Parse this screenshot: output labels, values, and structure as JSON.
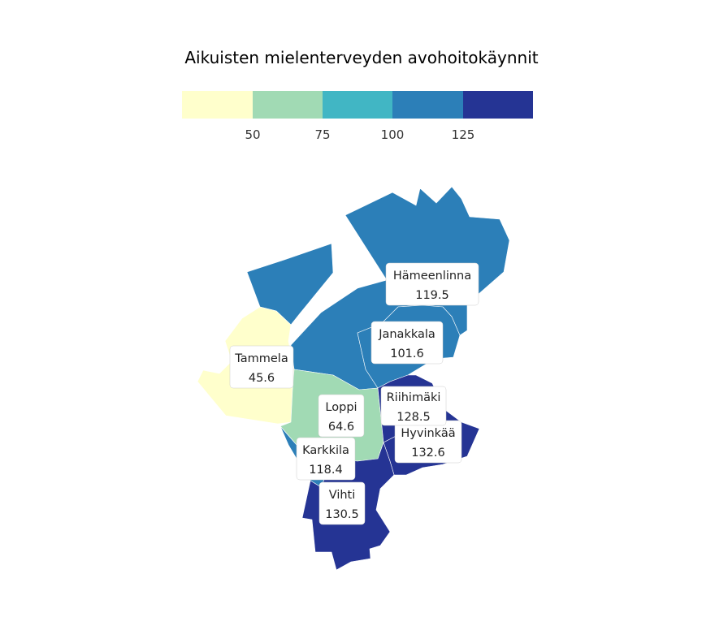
{
  "title": "Aikuisten mielenterveyden avohoitokäynnit",
  "legend": {
    "colors": [
      "#ffffcc",
      "#a1dab4",
      "#41b6c4",
      "#2c7fb8",
      "#253494"
    ],
    "ticks": [
      "50",
      "75",
      "100",
      "125"
    ]
  },
  "regions": [
    {
      "name": "Hämeenlinna",
      "value": "119.5",
      "color": "#2c7fb8"
    },
    {
      "name": "Janakkala",
      "value": "101.6",
      "color": "#2c7fb8"
    },
    {
      "name": "Tammela",
      "value": "45.6",
      "color": "#ffffcc"
    },
    {
      "name": "Riihimäki",
      "value": "128.5",
      "color": "#253494"
    },
    {
      "name": "Loppi",
      "value": "64.6",
      "color": "#a1dab4"
    },
    {
      "name": "Hyvinkää",
      "value": "132.6",
      "color": "#253494"
    },
    {
      "name": "Karkkila",
      "value": "118.4",
      "color": "#2c7fb8"
    },
    {
      "name": "Vihti",
      "value": "130.5",
      "color": "#253494"
    }
  ]
}
